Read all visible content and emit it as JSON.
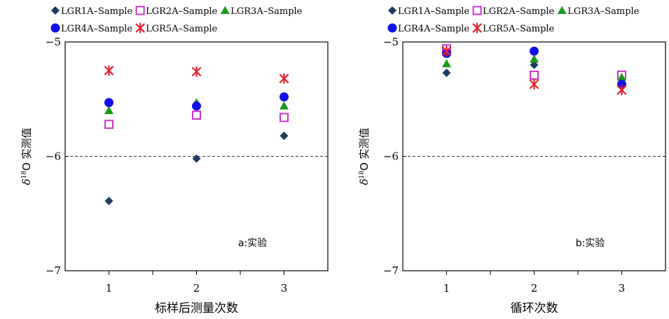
{
  "series_styles": [
    {
      "name": "LGR1A–Sample",
      "marker": "diamond",
      "color": "#1f3a5f"
    },
    {
      "name": "LGR2A–Sample",
      "marker": "square-open",
      "color": "#cc33cc"
    },
    {
      "name": "LGR3A–Sample",
      "marker": "triangle",
      "color": "#1a9a1a"
    },
    {
      "name": "LGR4A–Sample",
      "marker": "circle",
      "color": "#1010e8"
    },
    {
      "name": "LGR5A–Sample",
      "marker": "star-x",
      "color": "#e8202a"
    }
  ],
  "chart_data": [
    {
      "type": "scatter",
      "xlabel": "标样后测量次数",
      "ylabel_prefix": "δ",
      "ylabel_sup": "18",
      "ylabel_suffix": "O 实测值",
      "annotation": "a:实验",
      "x": [
        1,
        2,
        3
      ],
      "xlim": [
        0.5,
        3.5
      ],
      "ylim": [
        -7,
        -5
      ],
      "yticks": [
        -7,
        -6,
        -5
      ],
      "ytick_labels": [
        "−7",
        "−6",
        "−5"
      ],
      "xtick_labels": [
        "1",
        "2",
        "3"
      ],
      "reference_line": -6,
      "grid": false,
      "legend": "top",
      "series": [
        {
          "name": "LGR1A–Sample",
          "values": [
            -6.39,
            -6.02,
            -5.82
          ]
        },
        {
          "name": "LGR2A–Sample",
          "values": [
            -5.72,
            -5.64,
            -5.66
          ]
        },
        {
          "name": "LGR3A–Sample",
          "values": [
            -5.6,
            -5.53,
            -5.56
          ]
        },
        {
          "name": "LGR4A–Sample",
          "values": [
            -5.53,
            -5.56,
            -5.48
          ]
        },
        {
          "name": "LGR5A–Sample",
          "values": [
            -5.25,
            -5.26,
            -5.32
          ]
        }
      ]
    },
    {
      "type": "scatter",
      "xlabel": "循环次数",
      "ylabel_prefix": "δ",
      "ylabel_sup": "18",
      "ylabel_suffix": "O 实测值",
      "annotation": "b:实验",
      "x": [
        1,
        2,
        3
      ],
      "xlim": [
        0.5,
        3.5
      ],
      "ylim": [
        -7,
        -5
      ],
      "yticks": [
        -7,
        -6,
        -5
      ],
      "ytick_labels": [
        "−7",
        "−6",
        "−5"
      ],
      "xtick_labels": [
        "1",
        "2",
        "3"
      ],
      "reference_line": -6,
      "grid": false,
      "legend": "top",
      "series": [
        {
          "name": "LGR1A–Sample",
          "values": [
            -5.27,
            -5.2,
            -5.37
          ]
        },
        {
          "name": "LGR2A–Sample",
          "values": [
            -5.06,
            -5.29,
            -5.29
          ]
        },
        {
          "name": "LGR3A–Sample",
          "values": [
            -5.19,
            -5.15,
            -5.31
          ]
        },
        {
          "name": "LGR4A–Sample",
          "values": [
            -5.1,
            -5.08,
            -5.37
          ]
        },
        {
          "name": "LGR5A–Sample",
          "values": [
            -5.08,
            -5.37,
            -5.42
          ]
        }
      ]
    }
  ]
}
